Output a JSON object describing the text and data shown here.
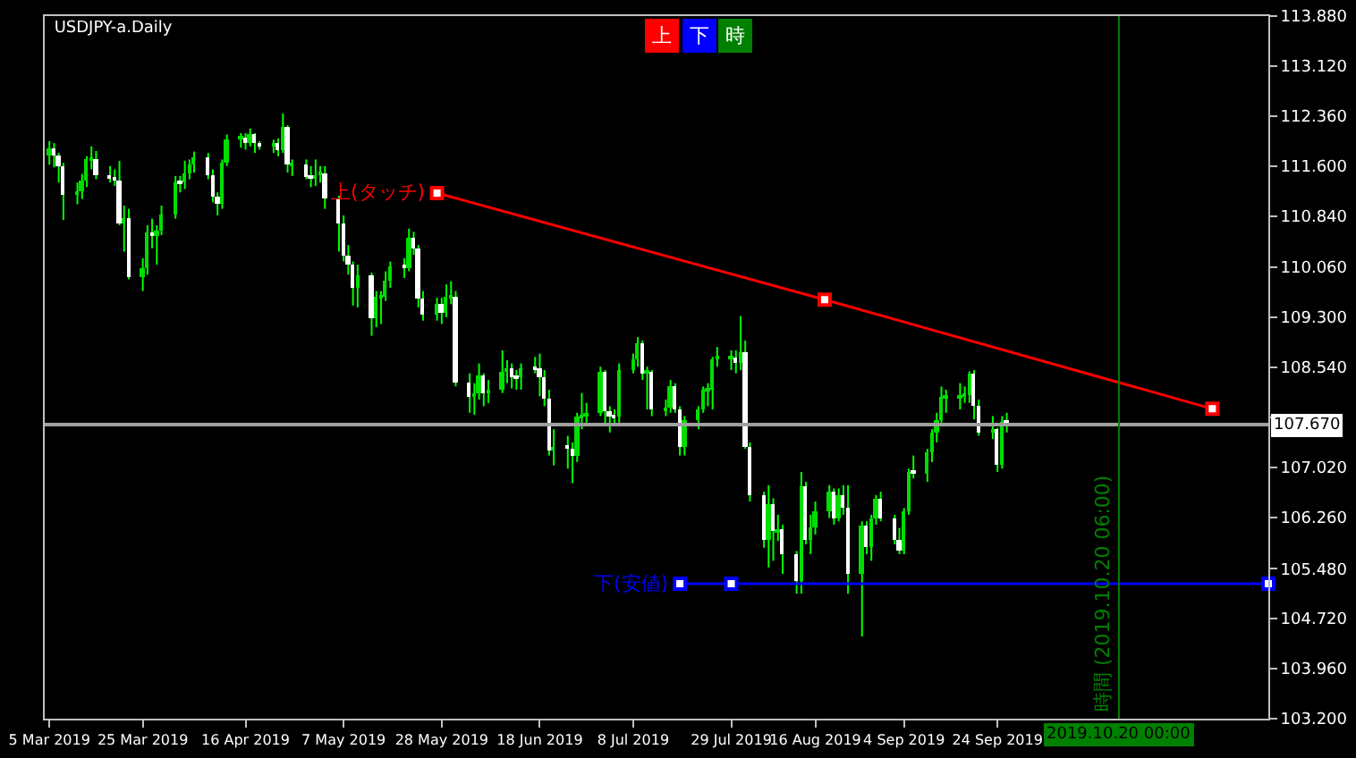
{
  "chart_data": {
    "type": "candlestick",
    "title": "USDJPY-a.Daily",
    "x": [
      "2019-03-05",
      "2019-03-06",
      "2019-03-07",
      "2019-03-08",
      "2019-03-11",
      "2019-03-12",
      "2019-03-13",
      "2019-03-14",
      "2019-03-15",
      "2019-03-18",
      "2019-03-19",
      "2019-03-20",
      "2019-03-21",
      "2019-03-22",
      "2019-03-25",
      "2019-03-26",
      "2019-03-27",
      "2019-03-28",
      "2019-03-29",
      "2019-04-01",
      "2019-04-02",
      "2019-04-03",
      "2019-04-04",
      "2019-04-05",
      "2019-04-08",
      "2019-04-09",
      "2019-04-10",
      "2019-04-11",
      "2019-04-12",
      "2019-04-15",
      "2019-04-16",
      "2019-04-17",
      "2019-04-18",
      "2019-04-19",
      "2019-04-22",
      "2019-04-23",
      "2019-04-24",
      "2019-04-25",
      "2019-04-26",
      "2019-04-29",
      "2019-04-30",
      "2019-05-01",
      "2019-05-02",
      "2019-05-03",
      "2019-05-06",
      "2019-05-07",
      "2019-05-08",
      "2019-05-09",
      "2019-05-10",
      "2019-05-13",
      "2019-05-14",
      "2019-05-15",
      "2019-05-16",
      "2019-05-17",
      "2019-05-20",
      "2019-05-21",
      "2019-05-22",
      "2019-05-23",
      "2019-05-24",
      "2019-05-27",
      "2019-05-28",
      "2019-05-29",
      "2019-05-30",
      "2019-05-31",
      "2019-06-03",
      "2019-06-04",
      "2019-06-05",
      "2019-06-06",
      "2019-06-07",
      "2019-06-10",
      "2019-06-11",
      "2019-06-12",
      "2019-06-13",
      "2019-06-14",
      "2019-06-17",
      "2019-06-18",
      "2019-06-19",
      "2019-06-20",
      "2019-06-21",
      "2019-06-24",
      "2019-06-25",
      "2019-06-26",
      "2019-06-27",
      "2019-06-28",
      "2019-07-01",
      "2019-07-02",
      "2019-07-03",
      "2019-07-04",
      "2019-07-05",
      "2019-07-08",
      "2019-07-09",
      "2019-07-10",
      "2019-07-11",
      "2019-07-12",
      "2019-07-15",
      "2019-07-16",
      "2019-07-17",
      "2019-07-18",
      "2019-07-19",
      "2019-07-22",
      "2019-07-23",
      "2019-07-24",
      "2019-07-25",
      "2019-07-26",
      "2019-07-29",
      "2019-07-30",
      "2019-07-31",
      "2019-08-01",
      "2019-08-02",
      "2019-08-05",
      "2019-08-06",
      "2019-08-07",
      "2019-08-08",
      "2019-08-09",
      "2019-08-12",
      "2019-08-13",
      "2019-08-14",
      "2019-08-15",
      "2019-08-16",
      "2019-08-19",
      "2019-08-20",
      "2019-08-21",
      "2019-08-22",
      "2019-08-23",
      "2019-08-26",
      "2019-08-27",
      "2019-08-28",
      "2019-08-29",
      "2019-08-30",
      "2019-09-02",
      "2019-09-03",
      "2019-09-04",
      "2019-09-05",
      "2019-09-06",
      "2019-09-09",
      "2019-09-10",
      "2019-09-11",
      "2019-09-12",
      "2019-09-13",
      "2019-09-16",
      "2019-09-17",
      "2019-09-18",
      "2019-09-19",
      "2019-09-20",
      "2019-09-23",
      "2019-09-24",
      "2019-09-25",
      "2019-09-26"
    ],
    "ohlc": [
      [
        111.75,
        111.98,
        111.62,
        111.88
      ],
      [
        111.88,
        111.95,
        111.58,
        111.75
      ],
      [
        111.75,
        111.8,
        111.35,
        111.6
      ],
      [
        111.6,
        111.65,
        110.78,
        111.17
      ],
      [
        111.17,
        111.35,
        111.02,
        111.22
      ],
      [
        111.22,
        111.48,
        111.1,
        111.37
      ],
      [
        111.37,
        111.75,
        111.28,
        111.7
      ],
      [
        111.7,
        111.9,
        111.55,
        111.7
      ],
      [
        111.7,
        111.83,
        111.4,
        111.47
      ],
      [
        111.47,
        111.6,
        111.35,
        111.43
      ],
      [
        111.43,
        111.55,
        111.3,
        111.39
      ],
      [
        111.39,
        111.68,
        110.7,
        110.72
      ],
      [
        110.72,
        111.0,
        110.3,
        110.82
      ],
      [
        110.82,
        110.95,
        109.88,
        109.92
      ],
      [
        109.92,
        110.2,
        109.7,
        110.05
      ],
      [
        110.05,
        110.7,
        109.95,
        110.6
      ],
      [
        110.6,
        110.8,
        110.35,
        110.53
      ],
      [
        110.53,
        110.7,
        110.1,
        110.63
      ],
      [
        110.63,
        111.0,
        110.55,
        110.86
      ],
      [
        110.86,
        111.45,
        110.8,
        111.36
      ],
      [
        111.36,
        111.45,
        111.2,
        111.35
      ],
      [
        111.35,
        111.68,
        111.25,
        111.49
      ],
      [
        111.49,
        111.7,
        111.4,
        111.63
      ],
      [
        111.63,
        111.82,
        111.5,
        111.73
      ],
      [
        111.73,
        111.8,
        111.4,
        111.47
      ],
      [
        111.47,
        111.55,
        111.05,
        111.13
      ],
      [
        111.13,
        111.2,
        110.85,
        111.03
      ],
      [
        111.03,
        111.7,
        110.95,
        111.65
      ],
      [
        111.65,
        112.08,
        111.6,
        112.01
      ],
      [
        112.01,
        112.1,
        111.88,
        112.02
      ],
      [
        112.02,
        112.1,
        111.85,
        111.96
      ],
      [
        111.96,
        112.17,
        111.9,
        112.08
      ],
      [
        112.08,
        112.1,
        111.8,
        111.94
      ],
      [
        111.94,
        111.98,
        111.85,
        111.9
      ],
      [
        111.9,
        112.0,
        111.8,
        111.94
      ],
      [
        111.94,
        112.02,
        111.75,
        111.85
      ],
      [
        111.85,
        112.4,
        111.8,
        112.19
      ],
      [
        112.19,
        112.22,
        111.5,
        111.62
      ],
      [
        111.62,
        111.7,
        111.45,
        111.63
      ],
      [
        111.63,
        111.7,
        111.4,
        111.44
      ],
      [
        111.44,
        111.6,
        111.28,
        111.42
      ],
      [
        111.42,
        111.7,
        111.3,
        111.47
      ],
      [
        111.47,
        111.6,
        111.35,
        111.5
      ],
      [
        111.5,
        111.6,
        110.95,
        111.1
      ],
      [
        111.1,
        111.15,
        110.3,
        110.73
      ],
      [
        110.73,
        110.85,
        110.15,
        110.24
      ],
      [
        110.24,
        110.4,
        109.95,
        110.11
      ],
      [
        110.11,
        110.15,
        109.48,
        109.74
      ],
      [
        109.74,
        110.1,
        109.45,
        109.94
      ],
      [
        109.94,
        109.98,
        109.02,
        109.3
      ],
      [
        109.3,
        109.7,
        109.15,
        109.6
      ],
      [
        109.6,
        109.7,
        109.2,
        109.6
      ],
      [
        109.6,
        110.0,
        109.55,
        109.86
      ],
      [
        109.86,
        110.15,
        109.75,
        110.07
      ],
      [
        110.07,
        110.2,
        109.9,
        110.06
      ],
      [
        110.06,
        110.65,
        110.0,
        110.52
      ],
      [
        110.52,
        110.6,
        110.25,
        110.36
      ],
      [
        110.36,
        110.4,
        109.45,
        109.58
      ],
      [
        109.58,
        109.7,
        109.25,
        109.35
      ],
      [
        109.35,
        109.6,
        109.25,
        109.5
      ],
      [
        109.5,
        109.6,
        109.2,
        109.38
      ],
      [
        109.38,
        109.8,
        109.3,
        109.6
      ],
      [
        109.6,
        109.85,
        109.5,
        109.61
      ],
      [
        109.61,
        109.7,
        108.25,
        108.3
      ],
      [
        108.3,
        108.45,
        107.85,
        108.1
      ],
      [
        108.1,
        108.3,
        107.82,
        108.14
      ],
      [
        108.14,
        108.6,
        108.05,
        108.42
      ],
      [
        108.42,
        108.45,
        107.95,
        108.14
      ],
      [
        108.14,
        108.35,
        108.0,
        108.2
      ],
      [
        108.2,
        108.8,
        108.15,
        108.46
      ],
      [
        108.46,
        108.65,
        108.3,
        108.52
      ],
      [
        108.52,
        108.6,
        108.22,
        108.4
      ],
      [
        108.4,
        108.5,
        108.2,
        108.38
      ],
      [
        108.38,
        108.6,
        108.2,
        108.54
      ],
      [
        108.54,
        108.7,
        108.45,
        108.52
      ],
      [
        108.52,
        108.75,
        108.1,
        108.4
      ],
      [
        108.4,
        108.5,
        107.95,
        108.06
      ],
      [
        108.06,
        108.2,
        107.2,
        107.28
      ],
      [
        107.28,
        107.6,
        107.05,
        107.32
      ],
      [
        107.32,
        107.5,
        107.0,
        107.31
      ],
      [
        107.31,
        107.4,
        106.78,
        107.19
      ],
      [
        107.19,
        107.85,
        107.1,
        107.78
      ],
      [
        107.78,
        108.15,
        107.6,
        107.81
      ],
      [
        107.81,
        108.0,
        107.7,
        107.86
      ],
      [
        107.86,
        108.55,
        107.8,
        108.46
      ],
      [
        108.46,
        108.5,
        107.65,
        107.88
      ],
      [
        107.88,
        107.95,
        107.55,
        107.8
      ],
      [
        107.8,
        107.9,
        107.65,
        107.78
      ],
      [
        107.78,
        108.6,
        107.7,
        108.5
      ],
      [
        108.5,
        108.75,
        108.45,
        108.66
      ],
      [
        108.66,
        109.0,
        108.55,
        108.9
      ],
      [
        108.9,
        108.95,
        108.35,
        108.45
      ],
      [
        108.45,
        108.55,
        107.9,
        108.48
      ],
      [
        108.48,
        108.5,
        107.8,
        107.9
      ],
      [
        107.9,
        108.05,
        107.8,
        107.92
      ],
      [
        107.92,
        108.35,
        107.85,
        108.26
      ],
      [
        108.26,
        108.3,
        107.85,
        107.9
      ],
      [
        107.9,
        107.95,
        107.2,
        107.33
      ],
      [
        107.33,
        107.8,
        107.2,
        107.74
      ],
      [
        107.74,
        107.95,
        107.6,
        107.9
      ],
      [
        107.9,
        108.25,
        107.85,
        108.2
      ],
      [
        108.2,
        108.3,
        107.95,
        108.2
      ],
      [
        108.2,
        108.7,
        107.9,
        108.67
      ],
      [
        108.67,
        108.85,
        108.55,
        108.68
      ],
      [
        108.68,
        108.8,
        108.5,
        108.7
      ],
      [
        108.7,
        108.8,
        108.45,
        108.6
      ],
      [
        108.6,
        109.32,
        108.5,
        108.76
      ],
      [
        108.76,
        108.95,
        107.3,
        107.34
      ],
      [
        107.34,
        107.4,
        106.5,
        106.6
      ],
      [
        106.6,
        106.65,
        105.8,
        105.92
      ],
      [
        105.92,
        106.75,
        105.5,
        106.45
      ],
      [
        106.45,
        106.55,
        105.6,
        106.05
      ],
      [
        106.05,
        106.3,
        105.9,
        106.07
      ],
      [
        106.07,
        106.15,
        105.4,
        105.7
      ],
      [
        105.7,
        105.75,
        105.1,
        105.3
      ],
      [
        105.3,
        106.95,
        105.1,
        106.72
      ],
      [
        106.72,
        106.8,
        105.85,
        105.93
      ],
      [
        105.93,
        106.3,
        105.7,
        106.1
      ],
      [
        106.1,
        106.5,
        106.0,
        106.35
      ],
      [
        106.35,
        106.75,
        106.25,
        106.65
      ],
      [
        106.65,
        106.7,
        106.15,
        106.25
      ],
      [
        106.25,
        106.7,
        106.2,
        106.6
      ],
      [
        106.6,
        106.75,
        106.3,
        106.4
      ],
      [
        106.4,
        106.75,
        105.1,
        105.4
      ],
      [
        105.4,
        106.2,
        104.45,
        106.14
      ],
      [
        106.14,
        106.2,
        105.7,
        105.8
      ],
      [
        105.8,
        106.3,
        105.6,
        106.24
      ],
      [
        106.24,
        106.6,
        106.15,
        106.53
      ],
      [
        106.53,
        106.65,
        106.2,
        106.25
      ],
      [
        106.25,
        106.3,
        105.85,
        105.92
      ],
      [
        105.92,
        106.1,
        105.7,
        105.75
      ],
      [
        105.75,
        106.4,
        105.7,
        106.34
      ],
      [
        106.34,
        107.0,
        106.3,
        106.94
      ],
      [
        106.94,
        107.2,
        106.85,
        106.93
      ],
      [
        106.93,
        107.3,
        106.8,
        107.24
      ],
      [
        107.24,
        107.6,
        107.1,
        107.54
      ],
      [
        107.54,
        107.85,
        107.4,
        107.74
      ],
      [
        107.74,
        108.25,
        107.7,
        108.08
      ],
      [
        108.08,
        108.2,
        107.85,
        108.08
      ],
      [
        108.08,
        108.3,
        107.9,
        108.1
      ],
      [
        108.1,
        108.25,
        108.0,
        108.13
      ],
      [
        108.13,
        108.48,
        108.0,
        108.45
      ],
      [
        108.45,
        108.5,
        107.75,
        107.95
      ],
      [
        107.95,
        108.05,
        107.5,
        107.56
      ],
      [
        107.56,
        107.8,
        107.45,
        107.6
      ],
      [
        107.6,
        107.62,
        106.95,
        107.07
      ],
      [
        107.07,
        107.8,
        107.0,
        107.72
      ],
      [
        107.72,
        107.85,
        107.55,
        107.7
      ]
    ],
    "series": [
      {
        "name": "上(タッチ)",
        "type": "line",
        "color": "#ff0000",
        "marker": "square",
        "x": [
          "2019-05-27",
          "2019-08-18",
          "2019-11-09"
        ],
        "values": [
          111.19,
          109.57,
          107.91
        ]
      },
      {
        "name": "下(安値)",
        "type": "line",
        "color": "#0000ff",
        "marker": "square",
        "x": [
          "2019-07-18",
          "2019-07-29",
          "2019-11-21"
        ],
        "values": [
          105.25,
          105.25,
          105.25
        ]
      }
    ],
    "ref_lines": [
      {
        "axis": "y",
        "value": 107.67,
        "label": "107.670",
        "color": "#a0a0a0"
      },
      {
        "axis": "x",
        "value": "2019-10-20",
        "label": "2019.10.20 00:00",
        "color": "#008000"
      }
    ],
    "annotations": [
      "上",
      "下",
      "時",
      {
        "text": "時間 (2019.10.20 06:00)",
        "x": "2019-10-20",
        "y": 105.1
      }
    ],
    "xlim": [
      "2019-03-04",
      "2019-11-21"
    ],
    "xticks": [
      {
        "value": "2019-03-05",
        "label": "5 Mar 2019"
      },
      {
        "value": "2019-03-25",
        "label": "25 Mar 2019"
      },
      {
        "value": "2019-04-16",
        "label": "16 Apr 2019"
      },
      {
        "value": "2019-05-07",
        "label": "7 May 2019"
      },
      {
        "value": "2019-05-28",
        "label": "28 May 2019"
      },
      {
        "value": "2019-06-18",
        "label": "18 Jun 2019"
      },
      {
        "value": "2019-07-08",
        "label": "8 Jul 2019"
      },
      {
        "value": "2019-07-29",
        "label": "29 Jul 2019"
      },
      {
        "value": "2019-08-16",
        "label": "16 Aug 2019"
      },
      {
        "value": "2019-09-04",
        "label": "4 Sep 2019"
      },
      {
        "value": "2019-09-24",
        "label": "24 Sep 2019"
      }
    ],
    "ylim": [
      103.2,
      113.88
    ],
    "yticks": [
      {
        "value": 103.2,
        "label": "103.200"
      },
      {
        "value": 103.96,
        "label": "103.960"
      },
      {
        "value": 104.72,
        "label": "104.720"
      },
      {
        "value": 105.48,
        "label": "105.480"
      },
      {
        "value": 106.26,
        "label": "106.260"
      },
      {
        "value": 107.02,
        "label": "107.020"
      },
      {
        "value": 107.78,
        "label": null
      },
      {
        "value": 108.54,
        "label": "108.540"
      },
      {
        "value": 109.3,
        "label": "109.300"
      },
      {
        "value": 110.06,
        "label": "110.060"
      },
      {
        "value": 110.84,
        "label": "110.840"
      },
      {
        "value": 111.6,
        "label": "111.600"
      },
      {
        "value": 112.36,
        "label": "112.360"
      },
      {
        "value": 113.12,
        "label": "113.120"
      },
      {
        "value": 113.88,
        "label": "113.880"
      }
    ],
    "grid": false,
    "legend": false
  }
}
